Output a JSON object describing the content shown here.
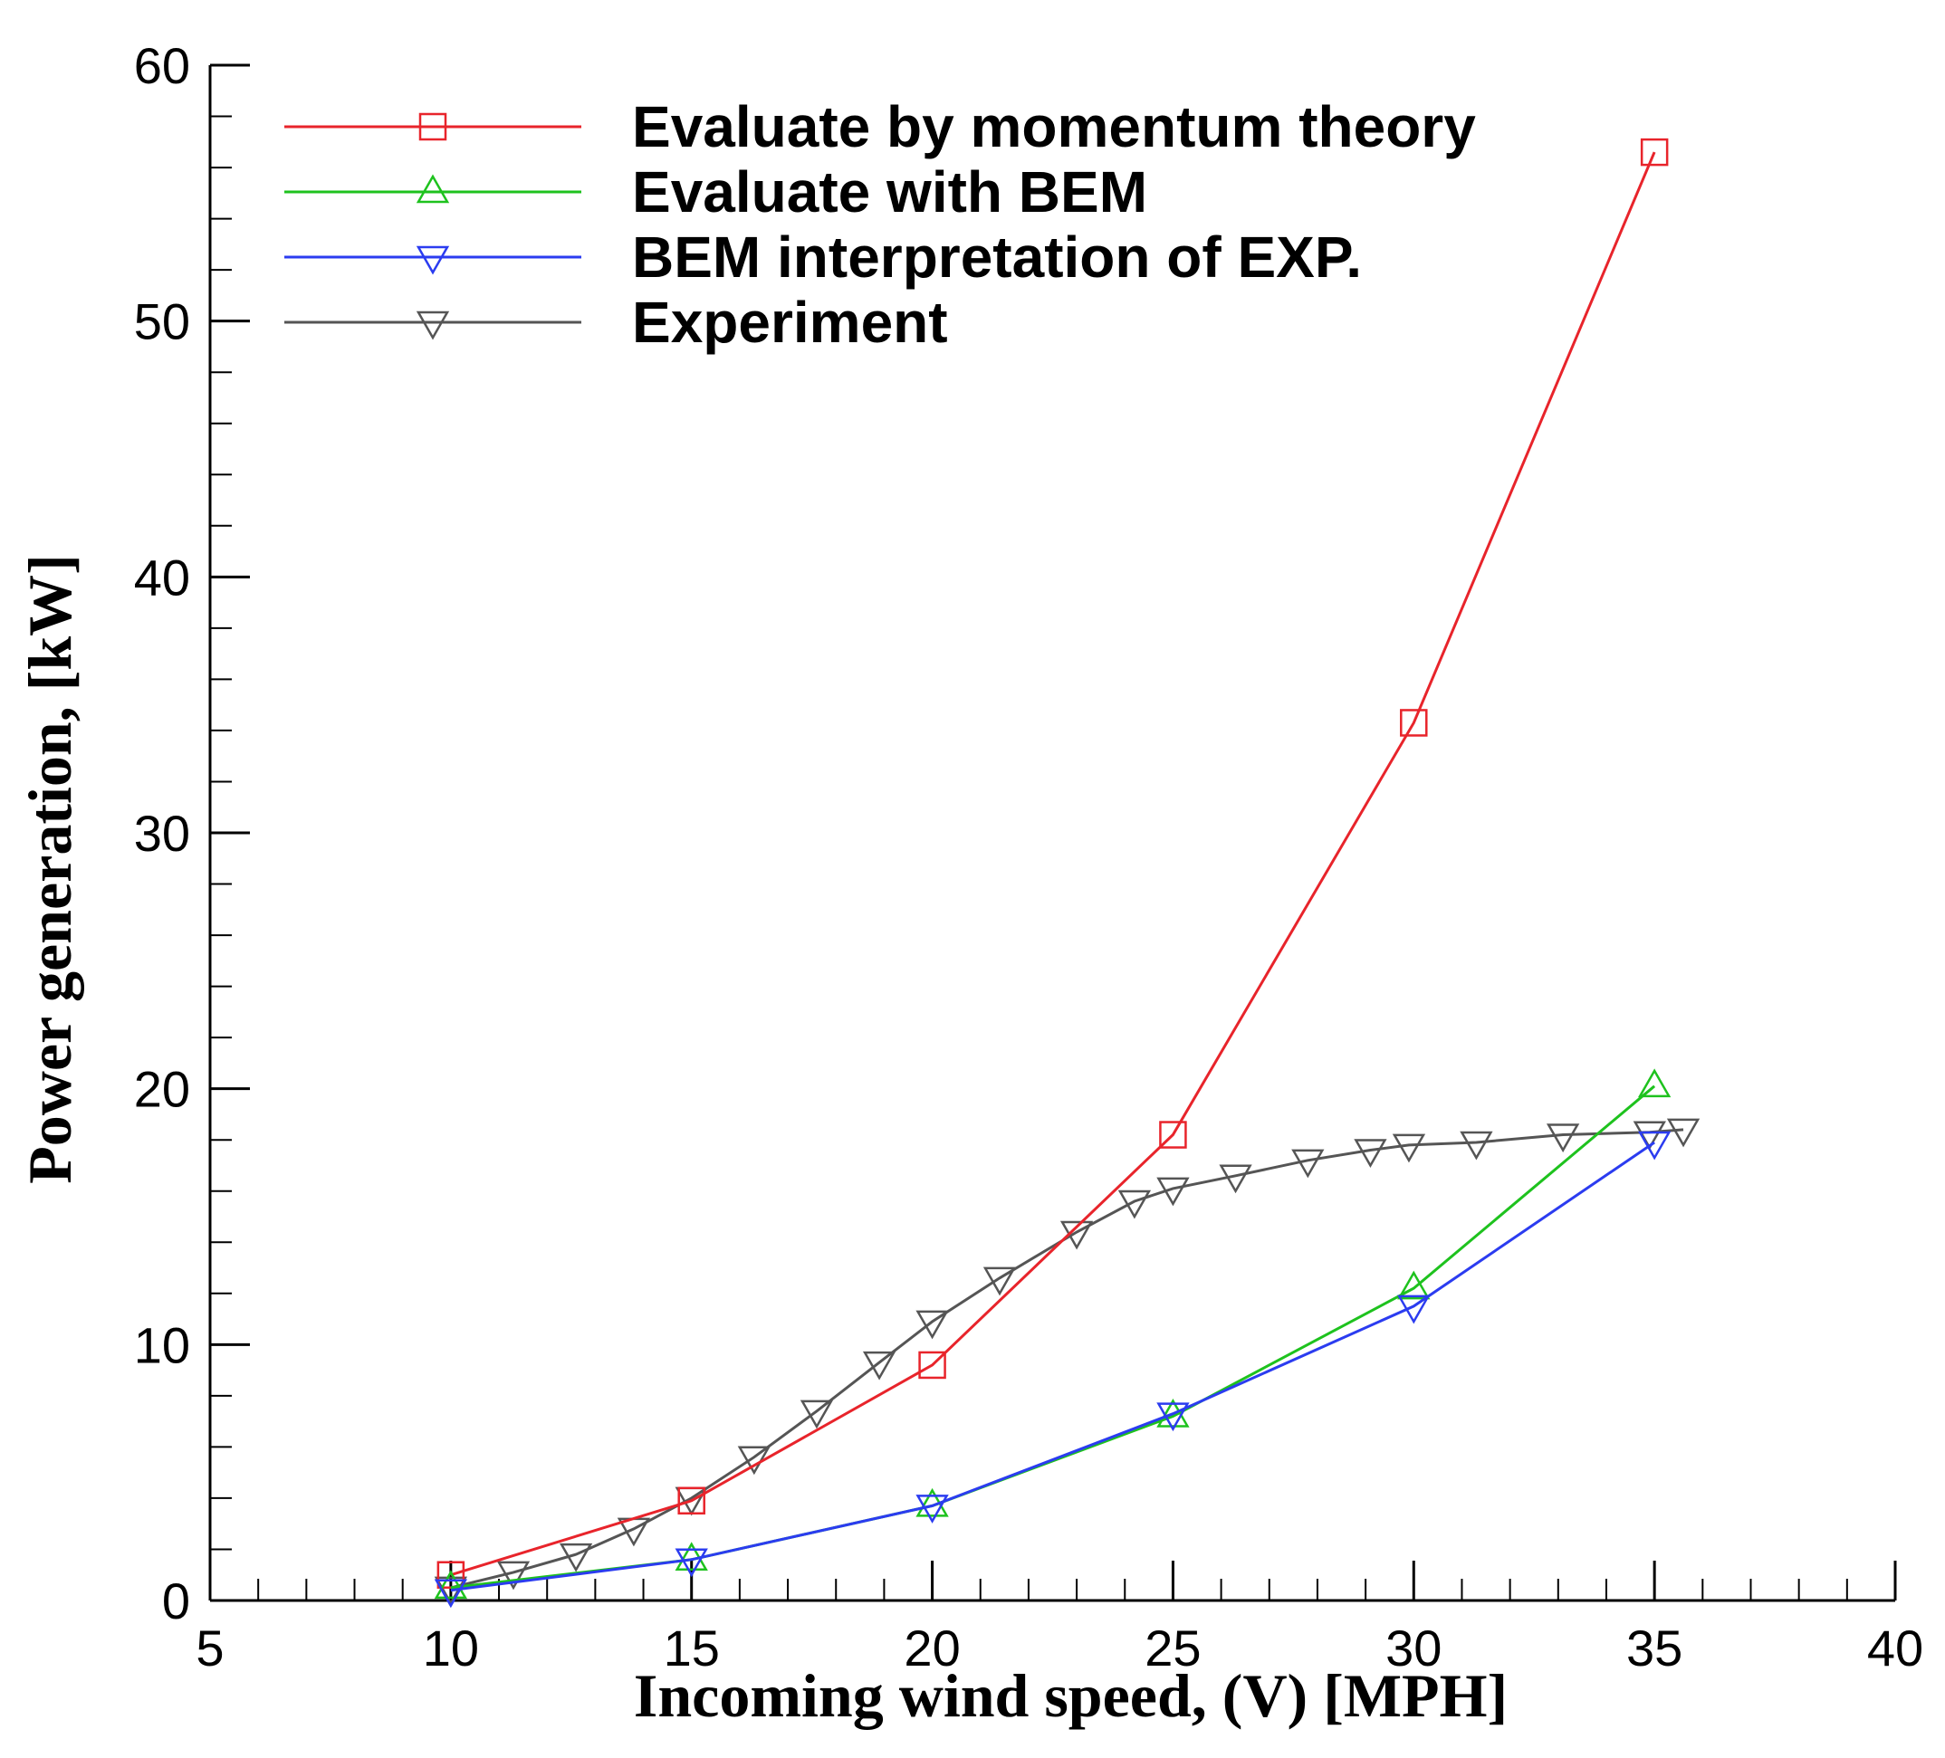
{
  "chart_data": {
    "type": "line",
    "title": "",
    "xlabel": "Incoming wind speed, (V) [MPH]",
    "ylabel": "Power generation, [kW]",
    "xlim": [
      5,
      40
    ],
    "ylim": [
      0,
      60
    ],
    "x_ticks": [
      "5",
      "10",
      "15",
      "20",
      "25",
      "30",
      "35",
      "40"
    ],
    "y_ticks": [
      "0",
      "10",
      "20",
      "30",
      "40",
      "50",
      "60"
    ],
    "grid": false,
    "legend_position": "top-left",
    "series": [
      {
        "name": "Evaluate by momentum theory",
        "color": "#e8242b",
        "marker": "square",
        "x": [
          10,
          15,
          20,
          25,
          30,
          35
        ],
        "y": [
          1.0,
          3.9,
          9.2,
          18.2,
          34.3,
          56.6
        ]
      },
      {
        "name": "Evaluate with BEM",
        "color": "#1ec21e",
        "marker": "triangle-up",
        "x": [
          10,
          15,
          20,
          25,
          30,
          35
        ],
        "y": [
          0.5,
          1.6,
          3.7,
          7.2,
          12.2,
          20.1
        ]
      },
      {
        "name": "BEM interpretation of EXP.",
        "color": "#2b3cf0",
        "marker": "triangle-down",
        "x": [
          10,
          15,
          20,
          25,
          30,
          35
        ],
        "y": [
          0.4,
          1.6,
          3.7,
          7.3,
          11.5,
          17.9
        ]
      },
      {
        "name": "Experiment",
        "color": "#555555",
        "marker": "triangle-down",
        "x": [
          10,
          11.3,
          12.6,
          13.8,
          15,
          16.3,
          17.6,
          18.9,
          20,
          21.4,
          23,
          24.2,
          25,
          26.3,
          27.8,
          29.1,
          29.9,
          31.3,
          33.1,
          34.9,
          35.6
        ],
        "y": [
          0.5,
          1.1,
          1.8,
          2.8,
          4.0,
          5.6,
          7.4,
          9.3,
          10.9,
          12.6,
          14.4,
          15.6,
          16.1,
          16.6,
          17.2,
          17.6,
          17.8,
          17.9,
          18.2,
          18.3,
          18.4
        ]
      }
    ]
  }
}
